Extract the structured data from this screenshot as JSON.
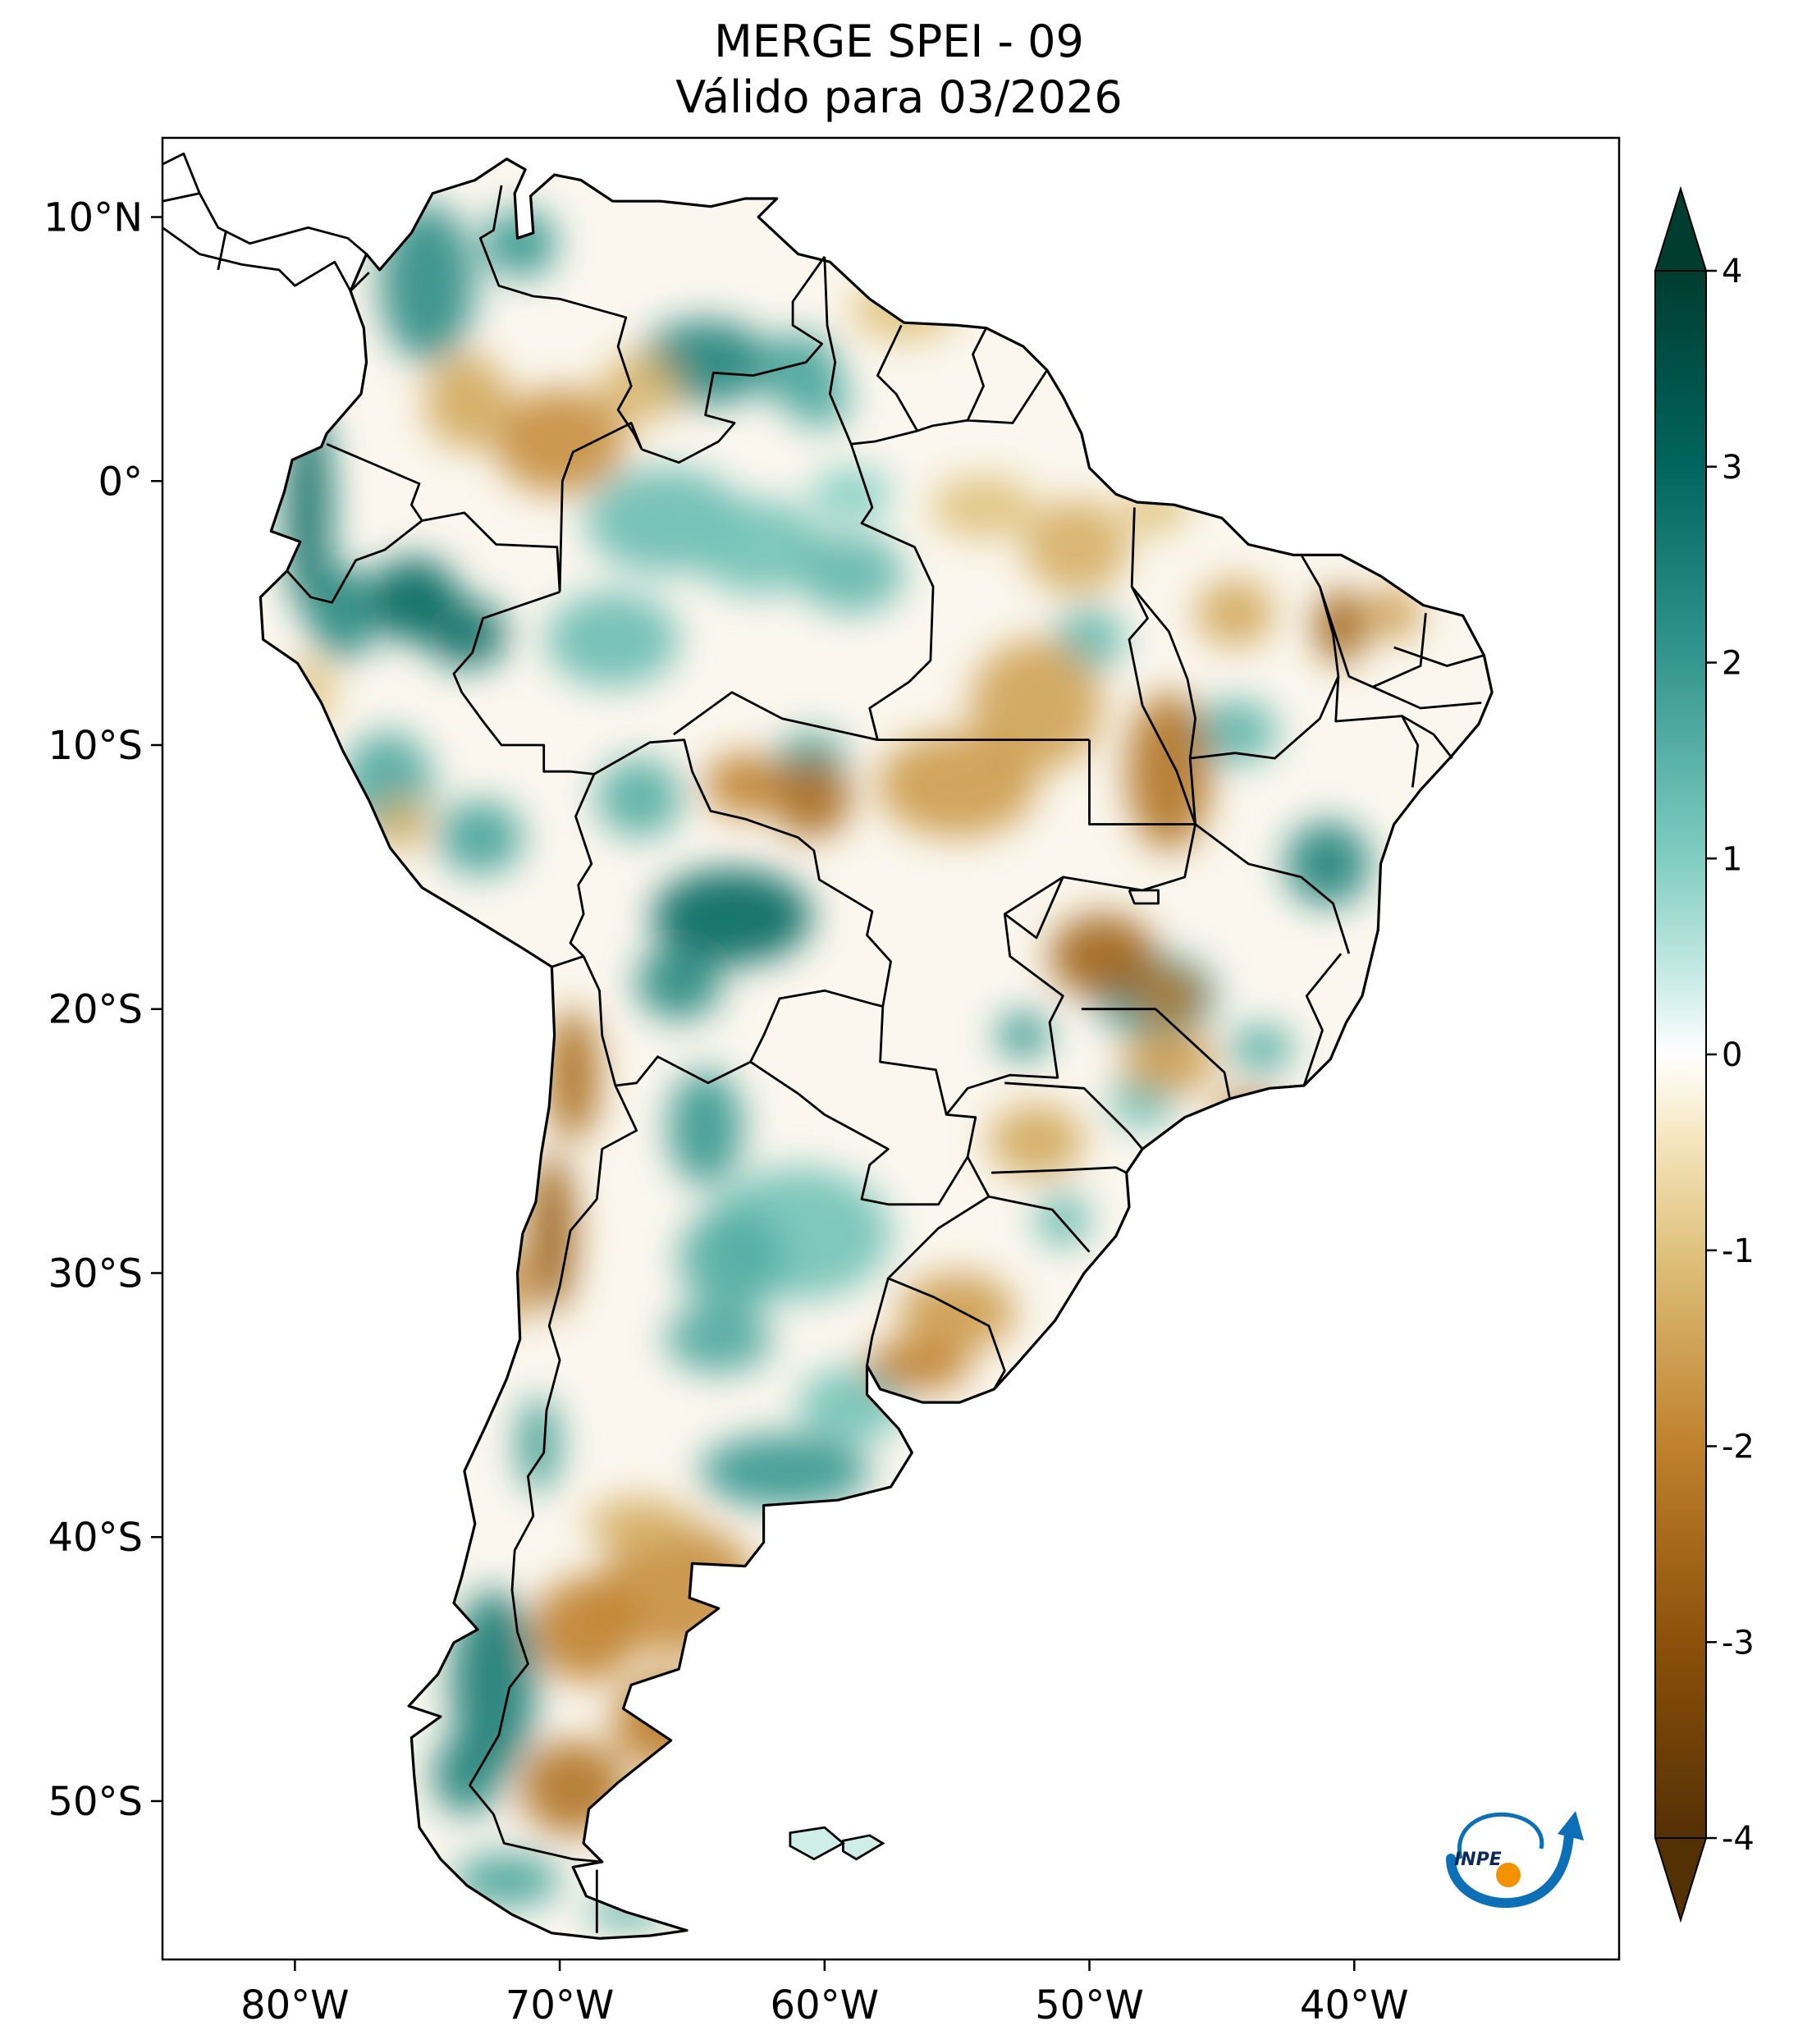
{
  "title": {
    "line1": "MERGE   SPEI - 09",
    "line2": "Válido para 03/2026"
  },
  "map": {
    "lon_range": [
      -85,
      -30
    ],
    "lat_range": [
      -56,
      13
    ],
    "lon_ticks": [
      {
        "value": -80,
        "label": "80°W"
      },
      {
        "value": -70,
        "label": "70°W"
      },
      {
        "value": -60,
        "label": "60°W"
      },
      {
        "value": -50,
        "label": "50°W"
      },
      {
        "value": -40,
        "label": "40°W"
      }
    ],
    "lat_ticks": [
      {
        "value": 10,
        "label": "10°N"
      },
      {
        "value": 0,
        "label": "0°"
      },
      {
        "value": -10,
        "label": "10°S"
      },
      {
        "value": -20,
        "label": "20°S"
      },
      {
        "value": -30,
        "label": "30°S"
      },
      {
        "value": -40,
        "label": "40°S"
      },
      {
        "value": -50,
        "label": "50°S"
      }
    ],
    "colormap": "BrBG",
    "wet_color": "#0f6e62",
    "dry_color": "#9a5b16",
    "neutral_color": "#ffffff"
  },
  "colorbar": {
    "min": -4,
    "max": 4,
    "ticks": [
      {
        "value": 4,
        "label": "4"
      },
      {
        "value": 3,
        "label": "3"
      },
      {
        "value": 2,
        "label": "2"
      },
      {
        "value": 1,
        "label": "1"
      },
      {
        "value": 0,
        "label": "0"
      },
      {
        "value": -1,
        "label": "-1"
      },
      {
        "value": -2,
        "label": "-2"
      },
      {
        "value": -3,
        "label": "-3"
      },
      {
        "value": -4,
        "label": "-4"
      }
    ]
  },
  "logo": {
    "text": "INPE"
  }
}
